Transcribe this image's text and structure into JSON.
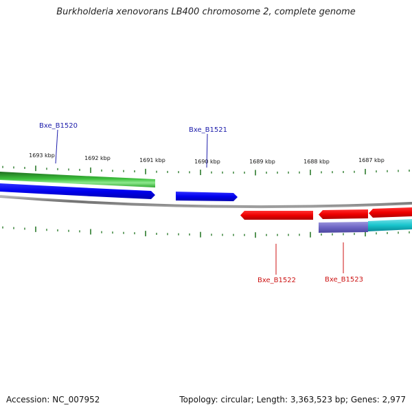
{
  "title": "Burkholderia xenovorans LB400 chromosome 2, complete genome",
  "footer": {
    "accession": "Accession: NC_007952",
    "topology": "Topology: circular; Length: 3,363,523 bp; Genes: 2,977"
  },
  "colors": {
    "forward_cds": "#1010ee",
    "reverse_cds": "#ee1010",
    "forward_feature": "#2a9a2a",
    "reverse_feature": "#7a72c8",
    "reverse_feature_alt": "#20c0c8",
    "backbone": "#8a8a8a",
    "ticks": "#2a7a2a",
    "forward_label": "#1a1aaa",
    "reverse_label": "#cc1111"
  },
  "ruler": {
    "unit": "kbp",
    "labels": [
      "1693 kbp",
      "1692 kbp",
      "1691 kbp",
      "1690 kbp",
      "1689 kbp",
      "1688 kbp",
      "1687 kbp"
    ]
  },
  "genes": [
    {
      "name": "Bxe_B1520",
      "strand": "forward"
    },
    {
      "name": "Bxe_B1521",
      "strand": "forward"
    },
    {
      "name": "Bxe_B1522",
      "strand": "reverse"
    },
    {
      "name": "Bxe_B1523",
      "strand": "reverse"
    }
  ]
}
